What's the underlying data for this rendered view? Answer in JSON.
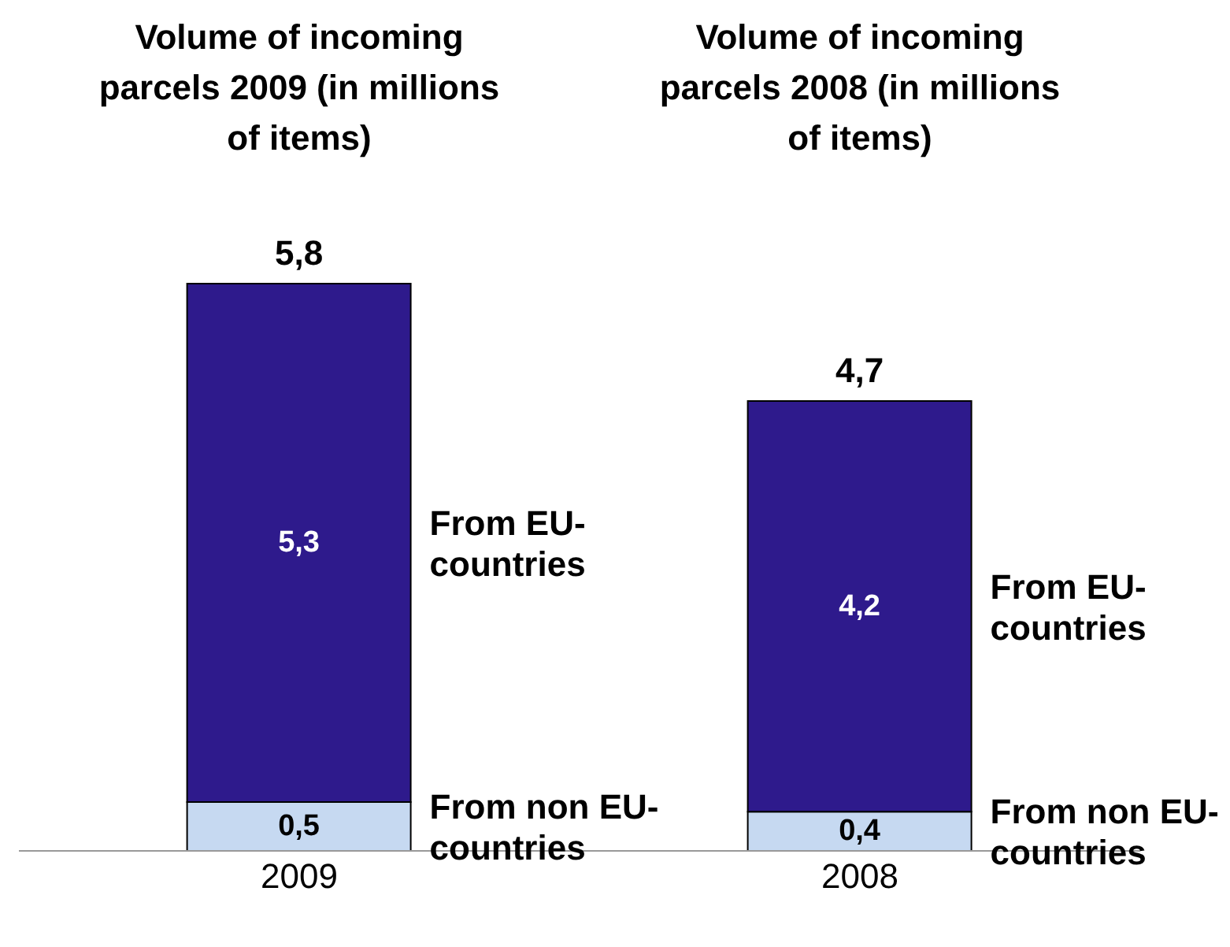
{
  "chart_data": {
    "type": "bar",
    "stacked": true,
    "categories": [
      "2009",
      "2008"
    ],
    "series": [
      {
        "name": "From non EU-countries",
        "color": "#c6d9f1",
        "values": [
          0.5,
          0.4
        ],
        "value_labels": [
          "0,5",
          "0,4"
        ]
      },
      {
        "name": "From EU-countries",
        "color": "#2e1a8c",
        "values": [
          5.3,
          4.2
        ],
        "value_labels": [
          "5,3",
          "4,2"
        ]
      }
    ],
    "totals": [
      "5,8",
      "4,7"
    ],
    "annotations": [
      "Volume of incoming parcels 2009 (in millions of items)",
      "Volume of incoming parcels 2008 (in millions of items)"
    ]
  }
}
